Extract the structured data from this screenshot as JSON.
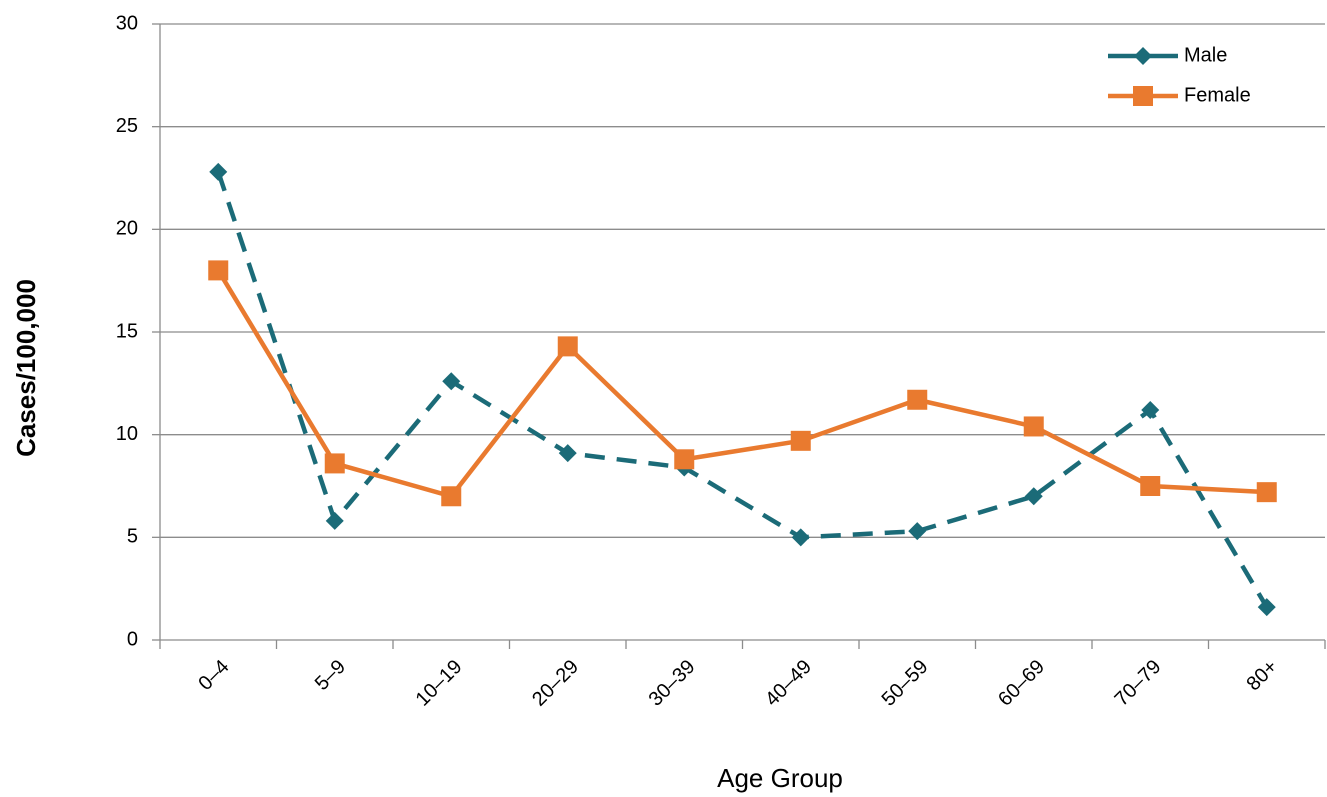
{
  "chart_data": {
    "type": "line",
    "x_label": "Age Group",
    "y_label": "Cases/100,000",
    "categories": [
      "0–4",
      "5–9",
      "10–19",
      "20–29",
      "30–39",
      "40–49",
      "50–59",
      "60–69",
      "70–79",
      "80+"
    ],
    "series": [
      {
        "name": "Male",
        "color": "#1b6b78",
        "dashed": true,
        "marker": "diamond",
        "values": [
          22.8,
          5.8,
          12.6,
          9.1,
          8.4,
          5.0,
          5.3,
          7.0,
          11.2,
          1.6
        ]
      },
      {
        "name": "Female",
        "color": "#e97a2f",
        "dashed": false,
        "marker": "square",
        "values": [
          18.0,
          8.6,
          7.0,
          14.3,
          8.8,
          9.7,
          11.7,
          10.4,
          7.5,
          7.2
        ]
      }
    ],
    "ylim": [
      0,
      30
    ],
    "yticks": [
      0,
      5,
      10,
      15,
      20,
      25,
      30
    ],
    "grid": true,
    "legend": "top-right"
  }
}
